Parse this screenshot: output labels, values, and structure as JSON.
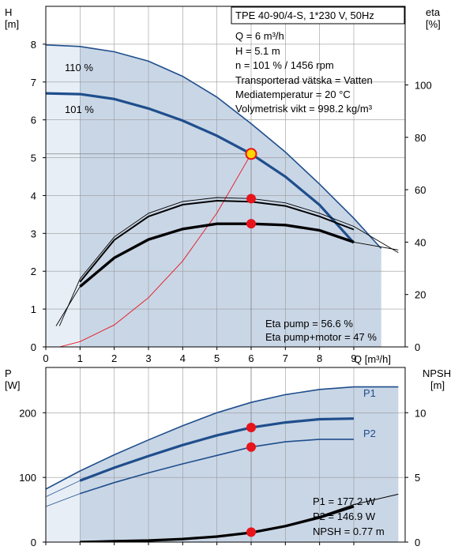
{
  "top": {
    "info_lines": [
      "TPE 40-90/4-S, 1*230 V, 50Hz",
      "Q = 6 m³/h",
      "H = 5.1 m",
      "n = 101 % / 1456 rpm",
      "Transporterad vätska = Vatten",
      "Mediatemperatur = 20 °C",
      "Volymetrisk vikt = 998.2 kg/m³"
    ],
    "eta_lines": [
      "Eta pump = 56.6 %",
      "Eta pump+motor = 47 %"
    ],
    "curve_labels": [
      "110 %",
      "101 %"
    ],
    "left_axis": {
      "title": "H",
      "unit": "[m]"
    },
    "right_axis": {
      "title": "eta",
      "unit": "[%]"
    },
    "x_axis_title": "Q [m³/h]"
  },
  "bottom": {
    "info_lines": [
      "P1 = 177.2 W",
      "P2 = 146.9 W",
      "NPSH = 0.77 m"
    ],
    "curve_labels": [
      "P1",
      "P2"
    ],
    "left_axis": {
      "title": "P",
      "unit": "[W]"
    },
    "right_axis": {
      "title": "NPSH",
      "unit": "[m]"
    }
  },
  "colors": {
    "curve_blue": "#1f4e8c",
    "band_fill": "#c9d6e6",
    "band_light": "#e7eef6",
    "grid": "#9a9a9a",
    "operating_point": "#e8141b",
    "efficiency_parabola": "#e8141b"
  },
  "chart_data": [
    {
      "type": "line",
      "xlabel": "Q [m³/h]",
      "ylabel": "H [m]",
      "y2label": "eta [%]",
      "xlim": [
        0,
        10.5
      ],
      "ylim": [
        0,
        9
      ],
      "y2lim": [
        0,
        130
      ],
      "x_ticks": [
        0,
        1,
        2,
        3,
        4,
        5,
        6,
        7,
        8,
        9
      ],
      "y_ticks": [
        0,
        1,
        2,
        3,
        4,
        5,
        6,
        7,
        8
      ],
      "y2_ticks": [
        0,
        20,
        40,
        60,
        80,
        100
      ],
      "grid": true,
      "series": [
        {
          "name": "110 %",
          "axis": "H",
          "x": [
            0,
            1,
            2,
            3,
            4,
            5,
            6,
            7,
            8,
            9,
            9.8
          ],
          "y": [
            7.98,
            7.94,
            7.8,
            7.55,
            7.15,
            6.6,
            5.9,
            5.15,
            4.3,
            3.4,
            2.6
          ]
        },
        {
          "name": "101 %",
          "axis": "H",
          "x": [
            0,
            1,
            2,
            3,
            4,
            5,
            6,
            7,
            8,
            9
          ],
          "y": [
            6.7,
            6.68,
            6.55,
            6.3,
            5.98,
            5.58,
            5.1,
            4.5,
            3.75,
            2.75
          ]
        },
        {
          "axis": "eta",
          "x": [
            0.4,
            1,
            2,
            3,
            4,
            5,
            6,
            7,
            8,
            9,
            10.3
          ],
          "y": [
            8,
            26,
            42,
            51,
            55.5,
            57,
            56.6,
            55,
            51,
            46,
            36
          ]
        },
        {
          "axis": "eta",
          "x": [
            1,
            2,
            3,
            4,
            5,
            6,
            7,
            8,
            9
          ],
          "y": [
            23,
            34,
            41,
            45,
            47,
            47,
            46.5,
            44.5,
            40
          ]
        },
        {
          "axis": "H",
          "x": [
            0.4,
            1,
            2,
            3,
            4,
            5,
            6
          ],
          "y": [
            0,
            0.14,
            0.58,
            1.3,
            2.27,
            3.54,
            5.1
          ]
        }
      ],
      "points": [
        {
          "axis": "H",
          "x": 6,
          "y": 5.1
        },
        {
          "axis": "eta",
          "x": 6,
          "y": 56.6
        },
        {
          "axis": "eta",
          "x": 6,
          "y": 47
        }
      ]
    },
    {
      "type": "line",
      "ylabel": "P [W]",
      "y2label": "NPSH [m]",
      "xlim": [
        0,
        10.5
      ],
      "ylim": [
        0,
        270
      ],
      "y2lim": [
        0,
        13.5
      ],
      "y_ticks": [
        0,
        100,
        200
      ],
      "y2_ticks": [
        0,
        5,
        10
      ],
      "grid": true,
      "series": [
        {
          "name": "P1",
          "axis": "P",
          "x": [
            0,
            1,
            2,
            3,
            4,
            5,
            6,
            7,
            8,
            9,
            10.3
          ],
          "y": [
            82,
            110,
            135,
            158,
            180,
            200,
            216,
            228,
            236,
            240,
            240
          ]
        },
        {
          "name": "P2",
          "axis": "P",
          "x": [
            1,
            2,
            3,
            4,
            5,
            6,
            7,
            8,
            9
          ],
          "y": [
            95,
            115,
            133,
            150,
            165,
            177,
            185,
            190,
            191
          ]
        },
        {
          "axis": "P",
          "x": [
            1,
            2,
            3,
            4,
            5,
            6,
            7,
            8,
            9
          ],
          "y": [
            75,
            92,
            107,
            121,
            134,
            147,
            155,
            159,
            159
          ]
        },
        {
          "axis": "NPSH",
          "x": [
            1,
            2,
            3,
            4,
            5,
            6,
            7,
            8,
            9,
            10.3
          ],
          "y": [
            0,
            0.07,
            0.13,
            0.25,
            0.45,
            0.77,
            1.3,
            2.0,
            2.9,
            3.7
          ]
        }
      ],
      "points": [
        {
          "axis": "P",
          "x": 6,
          "y": 177.2
        },
        {
          "axis": "P",
          "x": 6,
          "y": 146.9
        },
        {
          "axis": "NPSH",
          "x": 6,
          "y": 0.77
        }
      ]
    }
  ]
}
